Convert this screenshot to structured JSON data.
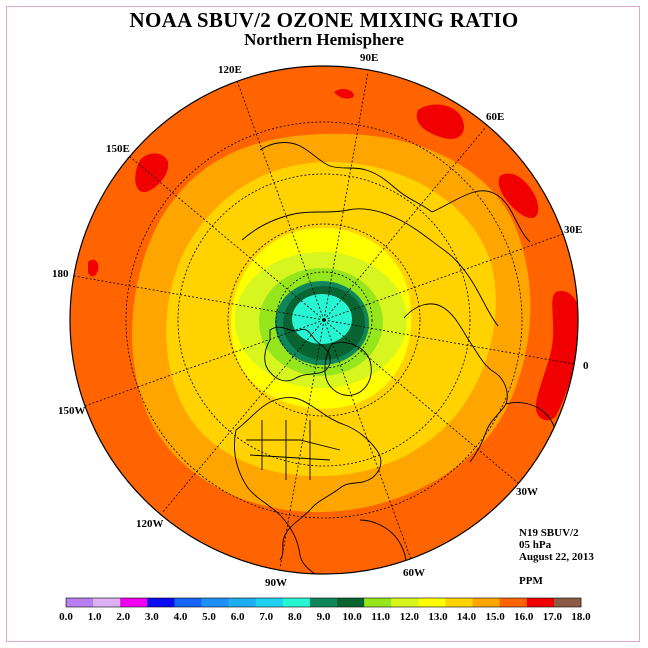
{
  "header": {
    "title": "NOAA SBUV/2 OZONE MIXING RATIO",
    "subtitle": "Northern Hemisphere"
  },
  "info": {
    "instrument": "N19 SBUV/2",
    "level": "05 hPa",
    "date": "August 22, 2013",
    "units": "PPM"
  },
  "longitude_labels": [
    "90E",
    "60E",
    "30E",
    "0",
    "30W",
    "60W",
    "90W",
    "120W",
    "150W",
    "180",
    "150E",
    "120E"
  ],
  "colorbar": {
    "ticks": [
      "0.0",
      "1.0",
      "2.0",
      "3.0",
      "4.0",
      "5.0",
      "6.0",
      "7.0",
      "8.0",
      "9.0",
      "10.0",
      "11.0",
      "12.0",
      "13.0",
      "14.0",
      "15.0",
      "16.0",
      "17.0",
      "18.0"
    ],
    "colors": [
      "#b77ff0",
      "#dcb0f2",
      "#f000f0",
      "#0a0af0",
      "#1464f5",
      "#1e90f5",
      "#1eaff0",
      "#1ed2f0",
      "#28f5d2",
      "#10875a",
      "#0a6432",
      "#96e61e",
      "#d7f51e",
      "#ffff00",
      "#ffd200",
      "#ffa500",
      "#ff6400",
      "#f00000",
      "#8c5a46"
    ]
  },
  "colors": {
    "ocean_band": "#ff6400",
    "band_15": "#ffa500",
    "band_14": "#ffd200",
    "band_13": "#ffff00",
    "band_12": "#d7f51e",
    "band_11": "#96e61e",
    "band_10": "#0a6432",
    "band_9": "#10875a",
    "band_8": "#28f5d2",
    "max_band": "#f00000"
  }
}
